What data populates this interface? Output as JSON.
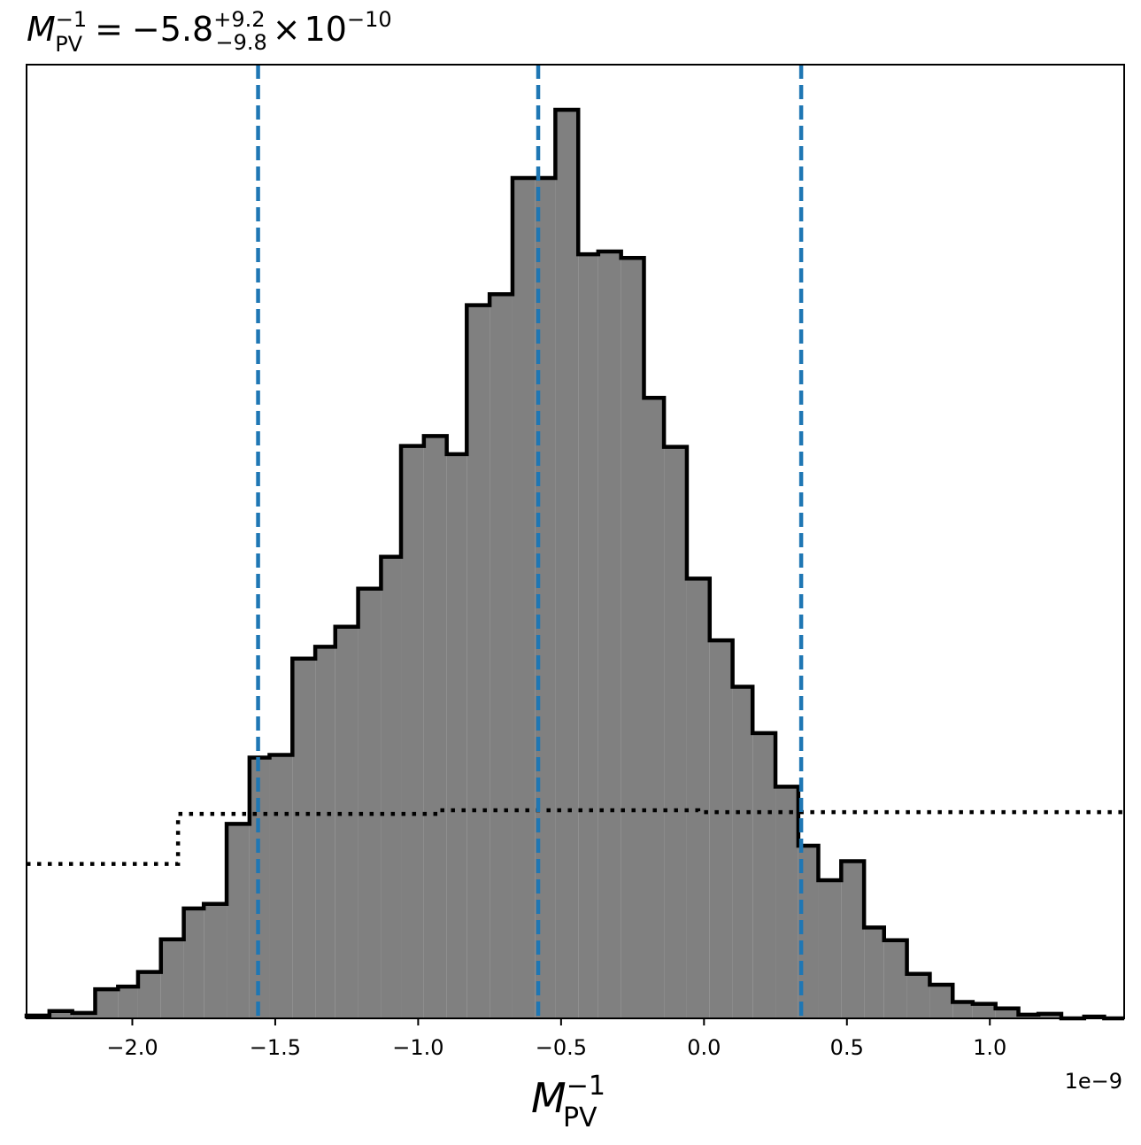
{
  "chart_data": {
    "type": "histogram",
    "title": {
      "symbol": "M",
      "subscript": "PV",
      "superscript": "−1",
      "equals": "=",
      "median": "−5.8",
      "upper_err": "+9.2",
      "lower_err": "−9.8",
      "times": "×",
      "base": "10",
      "exponent": "−10"
    },
    "xlabel": {
      "symbol": "M",
      "subscript": "PV",
      "superscript": "−1"
    },
    "ylabel": "",
    "x_offset_label": "1e−9",
    "x_scale": 1e-09,
    "xlim": [
      -2.37,
      1.47
    ],
    "ylim": [
      0,
      1.0
    ],
    "yticks_visible": false,
    "grid": false,
    "x_ticks": [
      {
        "value": -2.0,
        "label": "−2.0"
      },
      {
        "value": -1.5,
        "label": "−1.5"
      },
      {
        "value": -1.0,
        "label": "−1.0"
      },
      {
        "value": -0.5,
        "label": "−0.5"
      },
      {
        "value": 0.0,
        "label": "0.0"
      },
      {
        "value": 0.5,
        "label": "0.5"
      },
      {
        "value": 1.0,
        "label": "1.0"
      }
    ],
    "histogram": {
      "fill_color": "#808080",
      "edge_color": "#000000",
      "bin_edges": [
        -2.37,
        -2.29,
        -2.21,
        -2.13,
        -2.05,
        -1.98,
        -1.9,
        -1.82,
        -1.75,
        -1.67,
        -1.59,
        -1.52,
        -1.44,
        -1.36,
        -1.29,
        -1.21,
        -1.13,
        -1.06,
        -0.98,
        -0.9,
        -0.83,
        -0.75,
        -0.67,
        -0.59,
        -0.52,
        -0.44,
        -0.37,
        -0.29,
        -0.21,
        -0.14,
        -0.06,
        0.02,
        0.1,
        0.17,
        0.25,
        0.33,
        0.4,
        0.48,
        0.56,
        0.63,
        0.71,
        0.79,
        0.87,
        0.94,
        1.02,
        1.1,
        1.17,
        1.25,
        1.33,
        1.4,
        1.47
      ],
      "counts": [
        0.003,
        0.008,
        0.006,
        0.032,
        0.035,
        0.051,
        0.087,
        0.121,
        0.126,
        0.214,
        0.287,
        0.29,
        0.396,
        0.409,
        0.431,
        0.473,
        0.508,
        0.63,
        0.641,
        0.621,
        0.785,
        0.797,
        0.925,
        0.925,
        1.0,
        0.841,
        0.844,
        0.837,
        0.683,
        0.629,
        0.484,
        0.416,
        0.365,
        0.314,
        0.255,
        0.19,
        0.152,
        0.173,
        0.1,
        0.086,
        0.049,
        0.037,
        0.018,
        0.016,
        0.011,
        0.004,
        0.005,
        0.0,
        0.002,
        0.0
      ]
    },
    "prior": {
      "style": "dotted",
      "color": "#000000",
      "segments": [
        {
          "x0": -2.37,
          "x1": -1.84,
          "y": 0.17
        },
        {
          "x0": -1.84,
          "x1": -0.93,
          "y": 0.225
        },
        {
          "x0": -0.93,
          "x1": -0.02,
          "y": 0.229
        },
        {
          "x0": -0.02,
          "x1": 1.47,
          "y": 0.227
        }
      ]
    },
    "quantile_lines": {
      "color": "#1f77b4",
      "style": "dashed",
      "values": [
        -1.56,
        -0.58,
        0.34
      ]
    }
  }
}
